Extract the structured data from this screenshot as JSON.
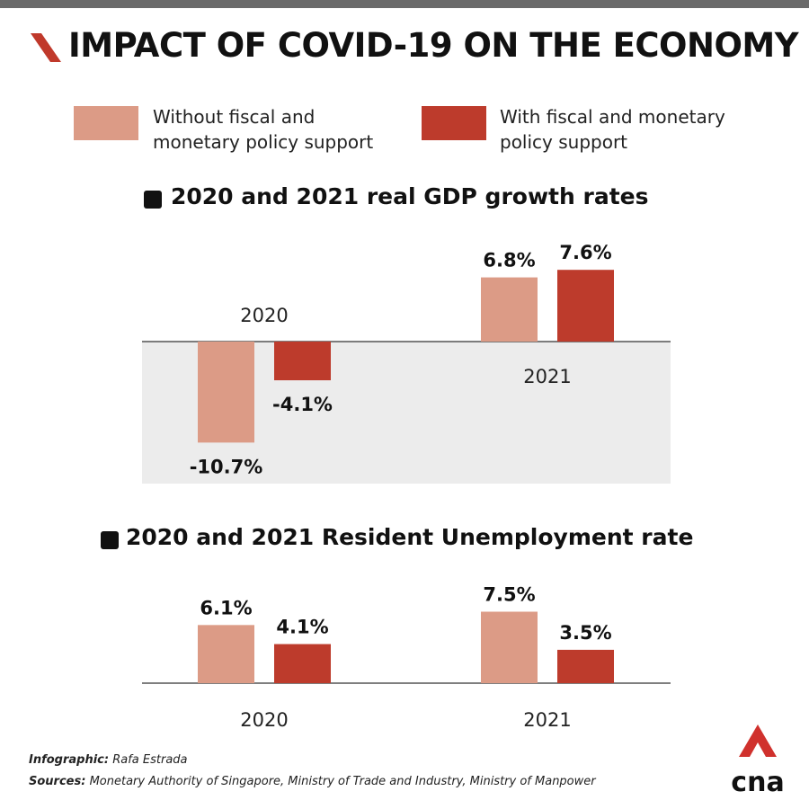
{
  "title": "IMPACT OF COVID-19 ON THE ECONOMY",
  "colors": {
    "without": "#dc9b86",
    "with": "#bd3b2c",
    "shade": "#ececec",
    "accent": "#c0392b"
  },
  "legend": [
    {
      "label": "Without fiscal and monetary policy support",
      "color": "#dc9b86"
    },
    {
      "label": "With fiscal and monetary policy support",
      "color": "#bd3b2c"
    }
  ],
  "chart_data": [
    {
      "type": "bar",
      "title": "2020 and 2021 real GDP growth rates",
      "categories": [
        "2020",
        "2021"
      ],
      "series": [
        {
          "name": "Without fiscal and monetary policy support",
          "values": [
            -10.7,
            6.8
          ],
          "labels": [
            "-10.7%",
            "6.8%"
          ]
        },
        {
          "name": "With fiscal and monetary policy support",
          "values": [
            -4.1,
            7.6
          ],
          "labels": [
            "-4.1%",
            "7.6%"
          ]
        }
      ],
      "unit": "%",
      "grid": false
    },
    {
      "type": "bar",
      "title": "2020 and 2021 Resident Unemployment rate",
      "categories": [
        "2020",
        "2021"
      ],
      "series": [
        {
          "name": "Without fiscal and monetary policy support",
          "values": [
            6.1,
            7.5
          ],
          "labels": [
            "6.1%",
            "7.5%"
          ]
        },
        {
          "name": "With fiscal and monetary policy support",
          "values": [
            4.1,
            3.5
          ],
          "labels": [
            "4.1%",
            "3.5%"
          ]
        }
      ],
      "unit": "%",
      "grid": false
    }
  ],
  "footer": {
    "credit_label": "Infographic:",
    "credit_value": "Rafa Estrada",
    "sources_label": "Sources:",
    "sources_value": "Monetary Authority of Singapore, Ministry of Trade and Industry, Ministry of Manpower"
  },
  "logo": {
    "text": "cna",
    "icon": "cna-logo-icon"
  }
}
